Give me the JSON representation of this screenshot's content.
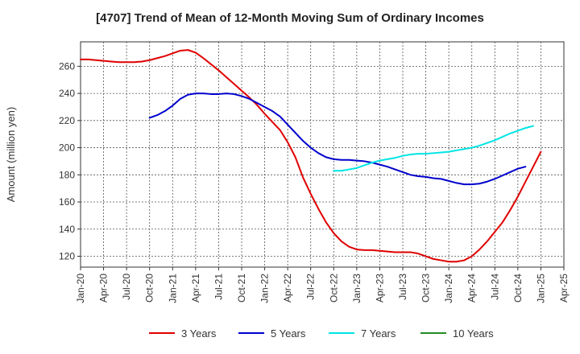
{
  "chart_data": {
    "type": "line",
    "title": "[4707]  Trend of Mean of 12-Month Moving Sum of Ordinary Incomes",
    "xlabel": "",
    "ylabel": "Amount (million yen)",
    "ylim": [
      112,
      278
    ],
    "yticks": [
      120,
      140,
      160,
      180,
      200,
      220,
      240,
      260
    ],
    "x_tick_labels": [
      "Jan-20",
      "Apr-20",
      "Jul-20",
      "Oct-20",
      "Jan-21",
      "Apr-21",
      "Jul-21",
      "Oct-21",
      "Jan-22",
      "Apr-22",
      "Jul-22",
      "Oct-22",
      "Jan-23",
      "Apr-23",
      "Jul-23",
      "Oct-23",
      "Jan-24",
      "Apr-24",
      "Jul-24",
      "Oct-24",
      "Jan-25",
      "Apr-25"
    ],
    "grid": true,
    "legend_position": "bottom",
    "series": [
      {
        "name": "3 Years",
        "color": "#e00000",
        "start_index": 0,
        "values": [
          265,
          265,
          264.5,
          264,
          263.5,
          263,
          263,
          263,
          263.5,
          264.5,
          266,
          267.5,
          269.5,
          271.5,
          272,
          270,
          266,
          261.5,
          257,
          252,
          247,
          242,
          237,
          231.5,
          225,
          219,
          213,
          204,
          193,
          178,
          166,
          155,
          145,
          137,
          131,
          127,
          125,
          124.5,
          124.5,
          124,
          123.5,
          123,
          123,
          123,
          122,
          120,
          118,
          117,
          116,
          116,
          117,
          120,
          125,
          131,
          138,
          145,
          154,
          164,
          175,
          186,
          197
        ]
      },
      {
        "name": "5 Years",
        "color": "#0000cc",
        "start_index": 9,
        "values": [
          222,
          224,
          227,
          231,
          236,
          239,
          240,
          240,
          239.5,
          239.5,
          240,
          239.5,
          238,
          236,
          233,
          230,
          227,
          223,
          217,
          211,
          205,
          200,
          196,
          193,
          191.5,
          191,
          191,
          190.5,
          190,
          189,
          187.5,
          186,
          184,
          182,
          180,
          179,
          178.5,
          177.5,
          177,
          175.5,
          174,
          173,
          173,
          173.5,
          175,
          177,
          179.5,
          182,
          184.5,
          186
        ]
      },
      {
        "name": "7 Years",
        "color": "#00e5e5",
        "start_index": 33,
        "values": [
          183,
          183,
          184,
          185,
          187,
          189,
          190.5,
          191.5,
          192.5,
          194,
          195,
          195.5,
          195.5,
          196,
          196.5,
          197,
          198,
          199,
          200,
          201.5,
          203.5,
          205.5,
          208,
          210.5,
          212.5,
          214.5,
          216
        ]
      },
      {
        "name": "10 Years",
        "color": "#228b22",
        "start_index": 0,
        "values": []
      }
    ]
  }
}
